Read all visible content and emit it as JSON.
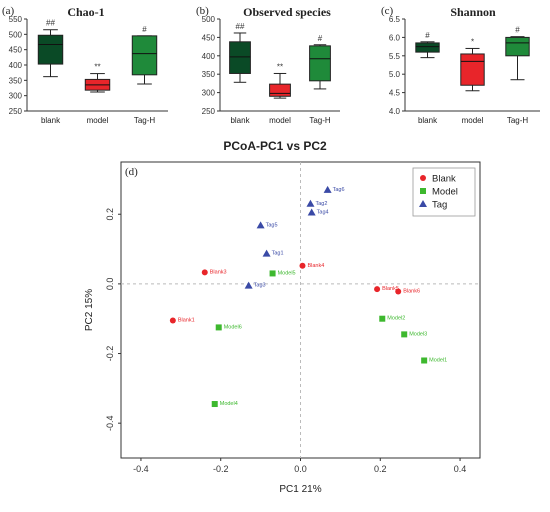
{
  "colors": {
    "dark_green": "#0a4a26",
    "red": "#e8252a",
    "green": "#1f8a3a",
    "blank_point": "#e8252a",
    "model_point": "#3db82e",
    "tag_point": "#3a4aa6"
  },
  "chart_data": [
    {
      "type": "box",
      "panel_label": "(a)",
      "title": "Chao-1",
      "categories": [
        "blank",
        "model",
        "Tag-H"
      ],
      "ylim": [
        250,
        550
      ],
      "yticks": [
        250,
        300,
        350,
        400,
        450,
        500,
        550
      ],
      "boxes": [
        {
          "category": "blank",
          "min": 362,
          "q1": 403,
          "median": 467,
          "q3": 497,
          "max": 515,
          "annotation": "##"
        },
        {
          "category": "model",
          "min": 312,
          "q1": 318,
          "median": 335,
          "q3": 353,
          "max": 372,
          "annotation": "**"
        },
        {
          "category": "Tag-H",
          "min": 338,
          "q1": 368,
          "median": 437,
          "q3": 495,
          "max": 495,
          "annotation": "#"
        }
      ]
    },
    {
      "type": "box",
      "panel_label": "(b)",
      "title": "Observed species",
      "categories": [
        "blank",
        "model",
        "Tag-H"
      ],
      "ylim": [
        250,
        500
      ],
      "yticks": [
        250,
        300,
        350,
        400,
        450,
        500
      ],
      "boxes": [
        {
          "category": "blank",
          "min": 328,
          "q1": 352,
          "median": 397,
          "q3": 438,
          "max": 462,
          "annotation": "##"
        },
        {
          "category": "model",
          "min": 285,
          "q1": 290,
          "median": 298,
          "q3": 323,
          "max": 352,
          "annotation": "**"
        },
        {
          "category": "Tag-H",
          "min": 310,
          "q1": 332,
          "median": 392,
          "q3": 427,
          "max": 430,
          "annotation": "#"
        }
      ]
    },
    {
      "type": "box",
      "panel_label": "(c)",
      "title": "Shannon",
      "categories": [
        "blank",
        "model",
        "Tag-H"
      ],
      "ylim": [
        4.0,
        6.5
      ],
      "yticks": [
        4.0,
        4.5,
        5.0,
        5.5,
        6.0,
        6.5
      ],
      "boxes": [
        {
          "category": "blank",
          "min": 5.45,
          "q1": 5.6,
          "median": 5.75,
          "q3": 5.85,
          "max": 5.88,
          "annotation": "#"
        },
        {
          "category": "model",
          "min": 4.55,
          "q1": 4.7,
          "median": 5.35,
          "q3": 5.55,
          "max": 5.7,
          "annotation": "*"
        },
        {
          "category": "Tag-H",
          "min": 4.85,
          "q1": 5.5,
          "median": 5.85,
          "q3": 6.0,
          "max": 6.02,
          "annotation": "#"
        }
      ]
    },
    {
      "type": "scatter",
      "panel_label": "(d)",
      "title": "PCoA-PC1 vs PC2",
      "xlabel": "PC1 21%",
      "ylabel": "PC2 15%",
      "xlim": [
        -0.45,
        0.45
      ],
      "ylim": [
        -0.5,
        0.35
      ],
      "xticks": [
        -0.4,
        -0.2,
        0.0,
        0.2,
        0.4
      ],
      "yticks": [
        -0.4,
        -0.2,
        0.0,
        0.2
      ],
      "legend": "top-right",
      "series": [
        {
          "name": "Blank",
          "marker": "circle",
          "points": [
            {
              "label": "Blank1",
              "x": -0.32,
              "y": -0.105
            },
            {
              "label": "Blank3",
              "x": -0.24,
              "y": 0.033
            },
            {
              "label": "Blank4",
              "x": 0.005,
              "y": 0.052
            },
            {
              "label": "Blank5",
              "x": 0.192,
              "y": -0.015
            },
            {
              "label": "Blank6",
              "x": 0.245,
              "y": -0.022
            }
          ]
        },
        {
          "name": "Model",
          "marker": "square",
          "points": [
            {
              "label": "Model5",
              "x": -0.07,
              "y": 0.03
            },
            {
              "label": "Model6",
              "x": -0.205,
              "y": -0.125
            },
            {
              "label": "Model2",
              "x": 0.205,
              "y": -0.1
            },
            {
              "label": "Model3",
              "x": 0.26,
              "y": -0.145
            },
            {
              "label": "Model1",
              "x": 0.31,
              "y": -0.22
            },
            {
              "label": "Model4",
              "x": -0.215,
              "y": -0.345
            }
          ]
        },
        {
          "name": "Tag",
          "marker": "triangle",
          "points": [
            {
              "label": "Tag6",
              "x": 0.068,
              "y": 0.27
            },
            {
              "label": "Tag2",
              "x": 0.025,
              "y": 0.23
            },
            {
              "label": "Tag4",
              "x": 0.028,
              "y": 0.205
            },
            {
              "label": "Tag5",
              "x": -0.1,
              "y": 0.168
            },
            {
              "label": "Tag1",
              "x": -0.085,
              "y": 0.087
            },
            {
              "label": "Tag3",
              "x": -0.13,
              "y": -0.005
            }
          ]
        }
      ]
    }
  ]
}
